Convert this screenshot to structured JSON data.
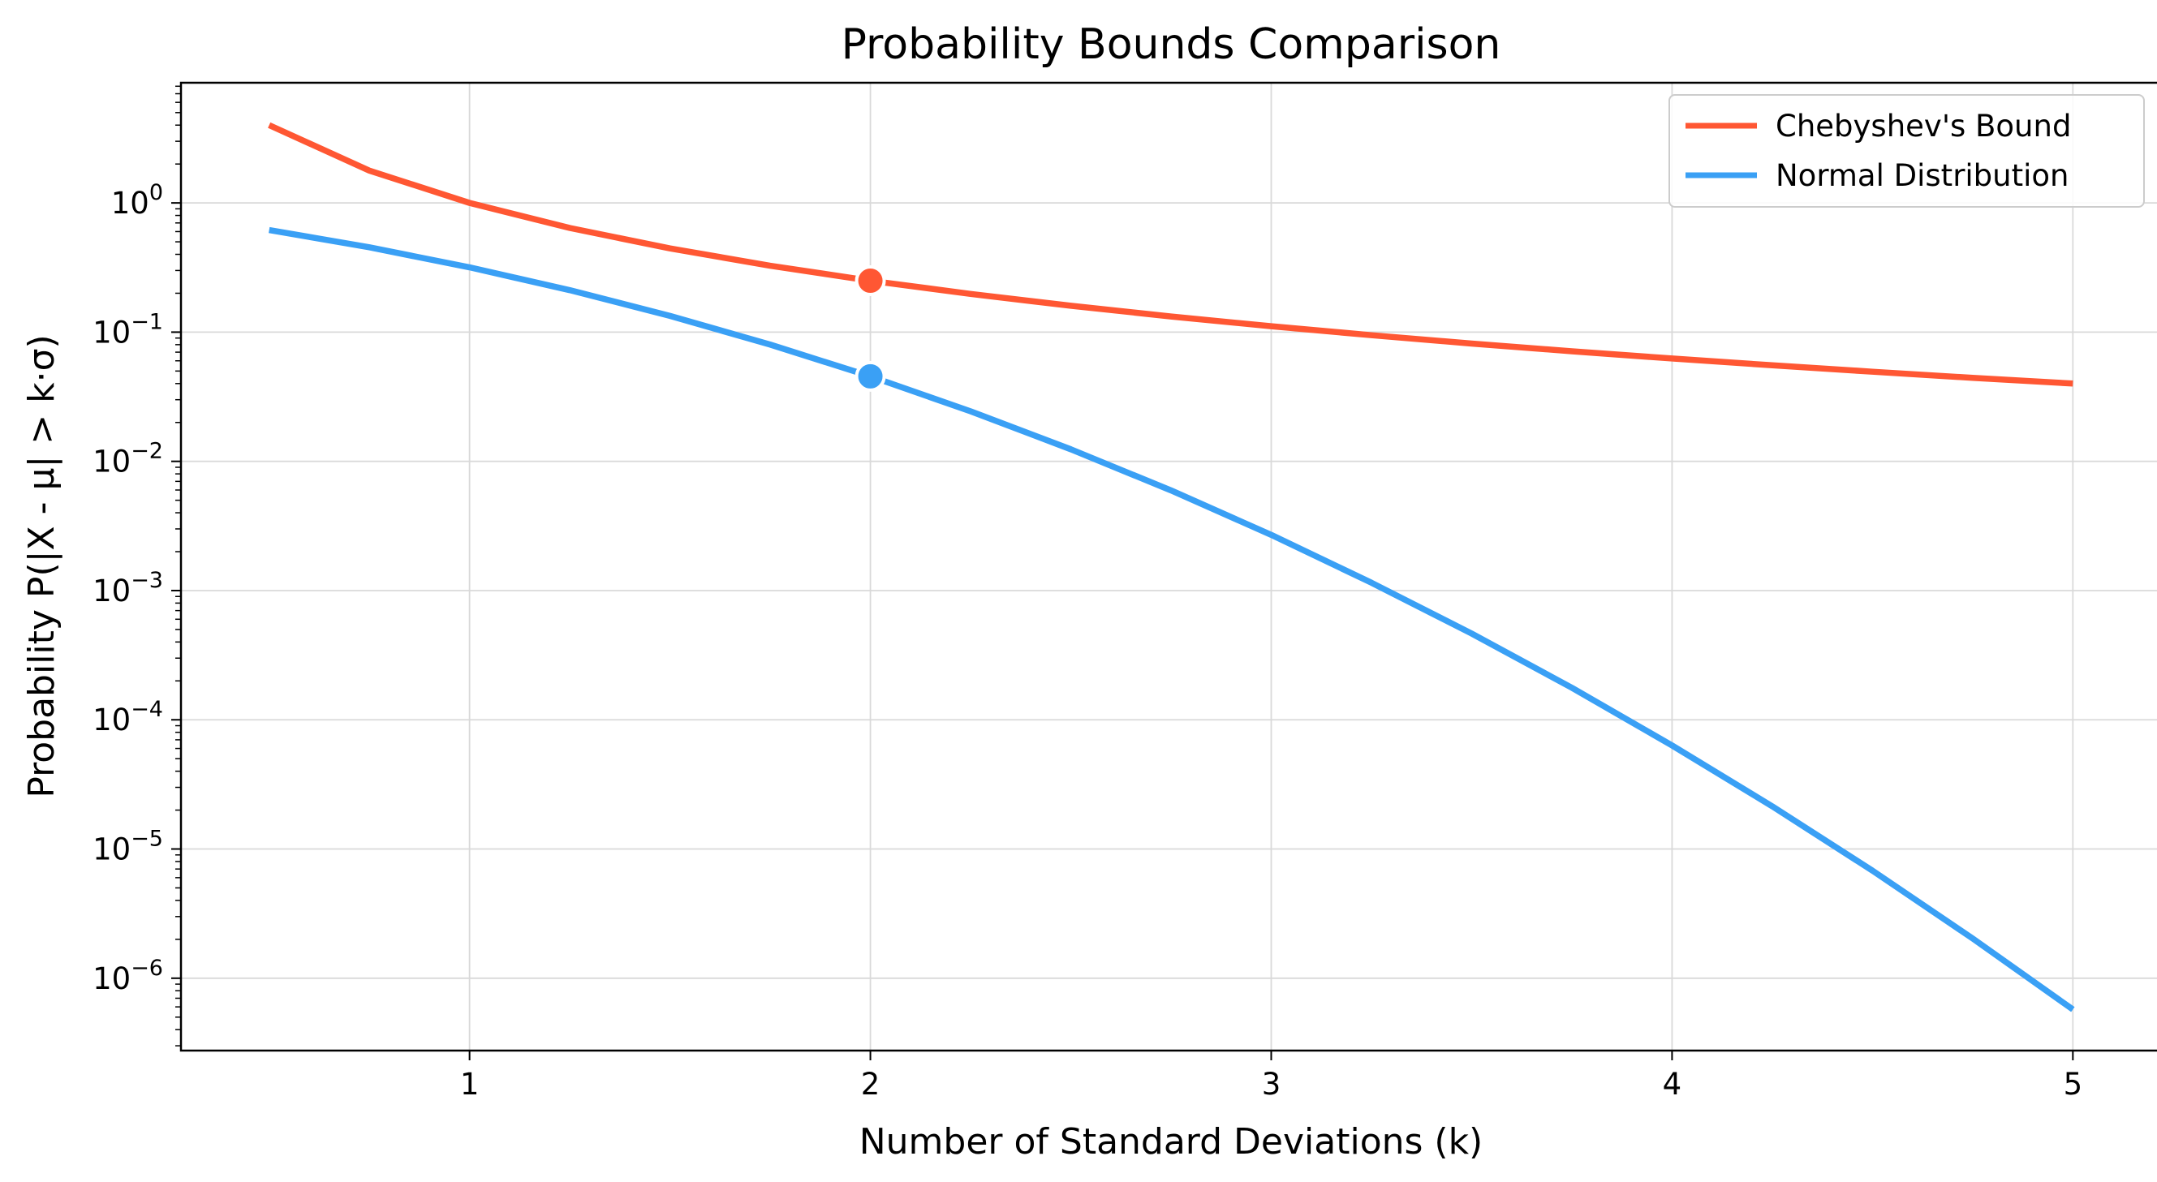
{
  "chart_data": {
    "type": "line",
    "title": "Probability Bounds Comparison",
    "xlabel": "Number of Standard Deviations (k)",
    "ylabel": "Probability P(|X - μ| > k·σ)",
    "xlim": [
      0.28,
      5.22
    ],
    "ylim_log10": [
      -6.56,
      0.93
    ],
    "yscale": "log",
    "grid": true,
    "legend_position": "top-right",
    "x_ticks": [
      {
        "value": 1,
        "label": "1"
      },
      {
        "value": 2,
        "label": "2"
      },
      {
        "value": 3,
        "label": "3"
      },
      {
        "value": 4,
        "label": "4"
      },
      {
        "value": 5,
        "label": "5"
      }
    ],
    "y_ticks": [
      {
        "value": 1,
        "base": "10",
        "exp": "0"
      },
      {
        "value": 0.1,
        "base": "10",
        "exp": "−1"
      },
      {
        "value": 0.01,
        "base": "10",
        "exp": "−2"
      },
      {
        "value": 0.001,
        "base": "10",
        "exp": "−3"
      },
      {
        "value": 0.0001,
        "base": "10",
        "exp": "−4"
      },
      {
        "value": 1e-05,
        "base": "10",
        "exp": "−5"
      },
      {
        "value": 1e-06,
        "base": "10",
        "exp": "−6"
      }
    ],
    "series": [
      {
        "name": "Chebyshev's Bound",
        "color": "#FF5733",
        "x": [
          0.5,
          0.75,
          1.0,
          1.25,
          1.5,
          1.75,
          2.0,
          2.25,
          2.5,
          2.75,
          3.0,
          3.25,
          3.5,
          3.75,
          4.0,
          4.25,
          4.5,
          4.75,
          5.0
        ],
        "y": [
          4.0,
          1.7778,
          1.0,
          0.64,
          0.4444,
          0.3265,
          0.25,
          0.1975,
          0.16,
          0.1322,
          0.1111,
          0.0947,
          0.0816,
          0.0711,
          0.0625,
          0.0554,
          0.0494,
          0.0443,
          0.04
        ]
      },
      {
        "name": "Normal Distribution",
        "color": "#3AA0F5",
        "x": [
          0.5,
          0.75,
          1.0,
          1.25,
          1.5,
          1.75,
          2.0,
          2.25,
          2.5,
          2.75,
          3.0,
          3.25,
          3.5,
          3.75,
          4.0,
          4.25,
          4.5,
          4.75,
          5.0
        ],
        "y": [
          0.6171,
          0.4533,
          0.3173,
          0.2113,
          0.1336,
          0.0801,
          0.0455,
          0.0244,
          0.0124,
          0.00596,
          0.0027,
          0.00115,
          0.000465,
          0.000177,
          6.33e-05,
          2.14e-05,
          6.8e-06,
          2.03e-06,
          5.73e-07
        ]
      }
    ],
    "highlight_points": [
      {
        "series": "Chebyshev's Bound",
        "x": 2.0,
        "y": 0.25,
        "color": "#FF5733"
      },
      {
        "series": "Normal Distribution",
        "x": 2.0,
        "y": 0.0455,
        "color": "#3AA0F5"
      }
    ]
  }
}
